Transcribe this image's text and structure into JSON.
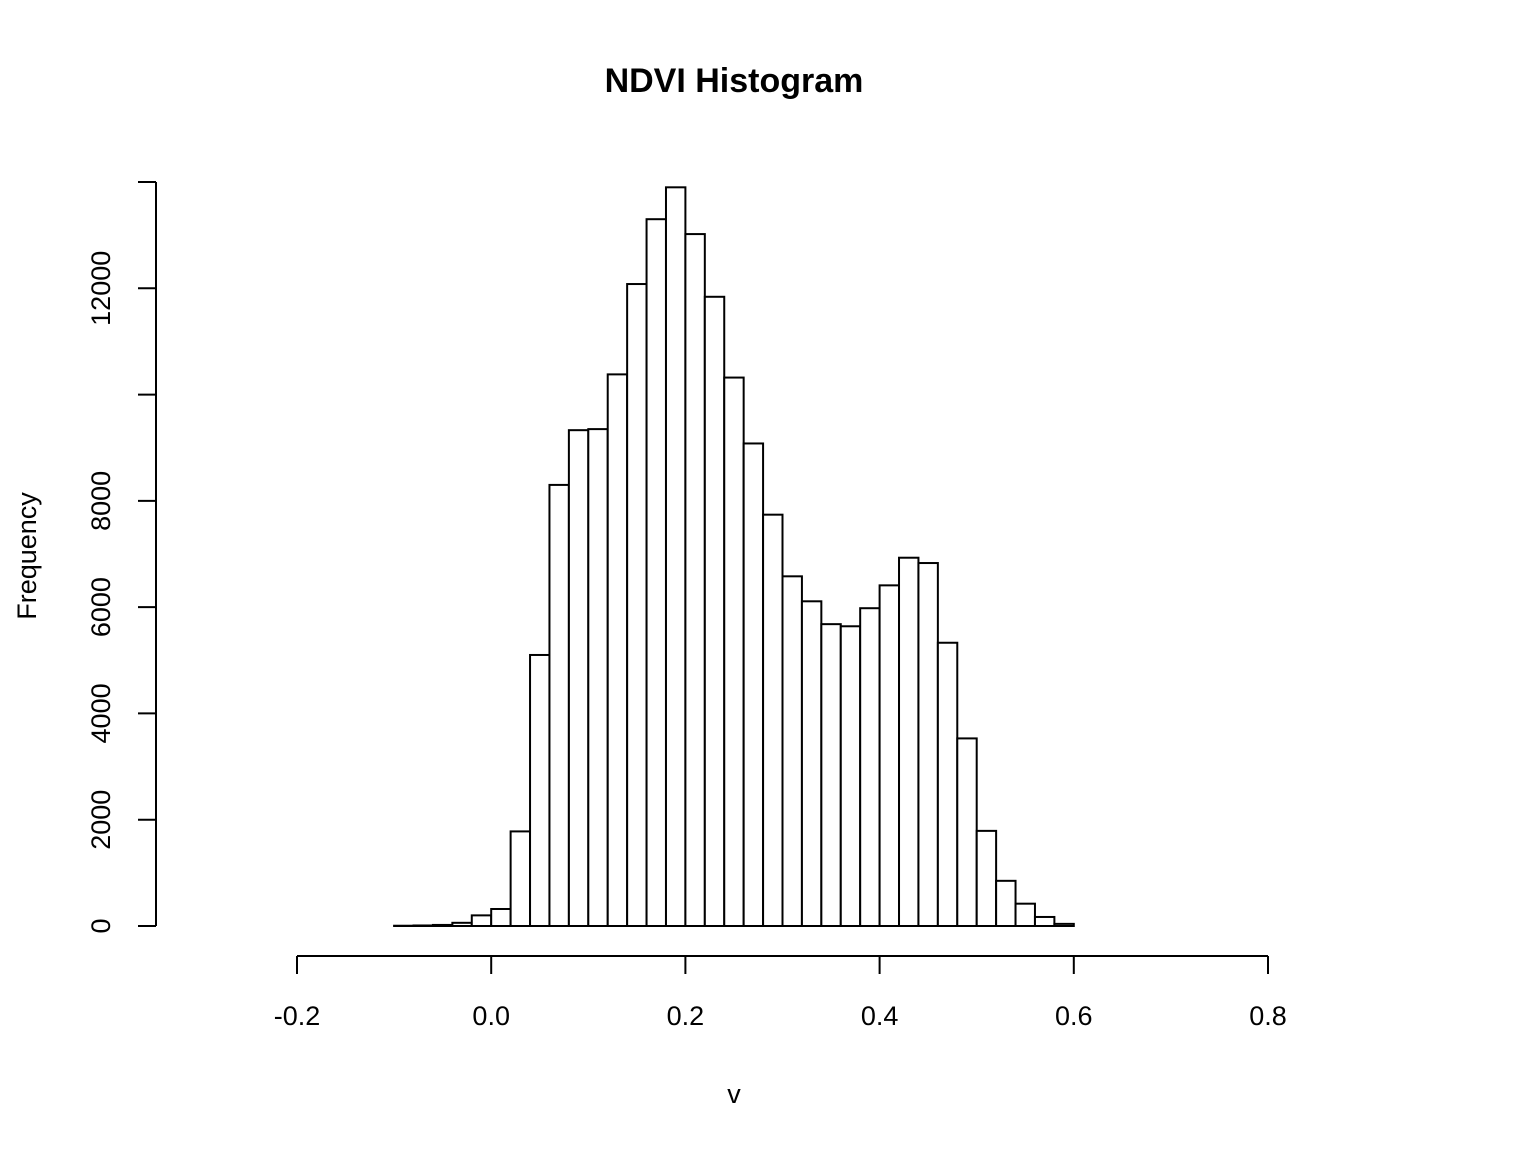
{
  "chart_data": {
    "type": "bar",
    "title": "NDVI Histogram",
    "xlabel": "v",
    "ylabel": "Frequency",
    "xlim": [
      -0.2,
      0.8
    ],
    "ylim": [
      0,
      14000
    ],
    "x_ticks": [
      -0.2,
      0.0,
      0.2,
      0.4,
      0.6,
      0.8
    ],
    "x_tick_labels": [
      "-0.2",
      "0.0",
      "0.2",
      "0.4",
      "0.6",
      "0.8"
    ],
    "y_ticks": [
      0,
      2000,
      4000,
      6000,
      8000,
      10000,
      12000,
      14000
    ],
    "y_tick_labels": [
      "0",
      "2000",
      "4000",
      "6000",
      "8000",
      "",
      "12000",
      ""
    ],
    "bin_width": 0.02,
    "bin_starts": [
      -0.1,
      -0.08,
      -0.06,
      -0.04,
      -0.02,
      0.0,
      0.02,
      0.04,
      0.06,
      0.08,
      0.1,
      0.12,
      0.14,
      0.16,
      0.18,
      0.2,
      0.22,
      0.24,
      0.26,
      0.28,
      0.3,
      0.32,
      0.34,
      0.36,
      0.38,
      0.4,
      0.42,
      0.44,
      0.46,
      0.48,
      0.5,
      0.52,
      0.54,
      0.56,
      0.58
    ],
    "values": [
      5,
      10,
      20,
      60,
      200,
      320,
      1780,
      5100,
      8300,
      9330,
      9350,
      10380,
      12080,
      13300,
      13900,
      13020,
      11840,
      10320,
      9080,
      7740,
      6580,
      6110,
      5680,
      5640,
      5980,
      6410,
      6930,
      6830,
      5330,
      3530,
      1790,
      850,
      420,
      170,
      40
    ],
    "grid": false
  }
}
